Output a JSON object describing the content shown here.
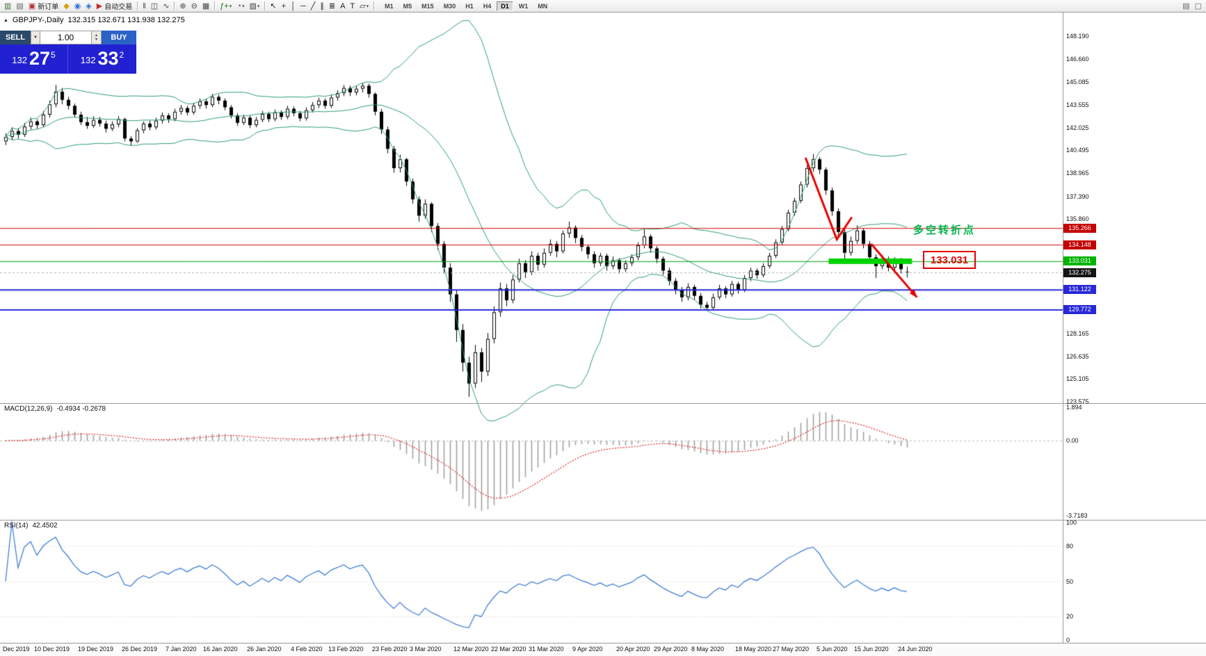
{
  "toolbar": {
    "new_order_label": "新订单",
    "auto_trading_label": "自动交易",
    "timeframes": [
      "M1",
      "M5",
      "M15",
      "M30",
      "H1",
      "H4",
      "D1",
      "W1",
      "MN"
    ],
    "active_timeframe": "D1",
    "items": [
      {
        "n": "charts-grid-icon",
        "g": "▥",
        "c": "#3c6e3c"
      },
      {
        "n": "chart-window-icon",
        "g": "▤",
        "c": "#666666"
      },
      {
        "n": "new-order-button",
        "g": "▣",
        "c": "#b03030",
        "label": "新订单"
      },
      {
        "n": "symbols-icon",
        "g": "◆",
        "c": "#d8a010"
      },
      {
        "n": "market-watch-icon",
        "g": "◉",
        "c": "#2b6fd4"
      },
      {
        "n": "navigator-icon",
        "g": "◈",
        "c": "#2b6fd4"
      },
      {
        "n": "auto-trading-button",
        "g": "▶",
        "c": "#c03030",
        "label": "自动交易"
      },
      {
        "t": "sep"
      },
      {
        "n": "bar-chart-type-icon",
        "g": "‖",
        "c": "#444444"
      },
      {
        "n": "candlestick-chart-type-icon",
        "g": "◫",
        "c": "#444444"
      },
      {
        "n": "line-chart-type-icon",
        "g": "∿",
        "c": "#444444"
      },
      {
        "t": "sep"
      },
      {
        "n": "zoom-in-icon",
        "g": "⊕",
        "c": "#444444"
      },
      {
        "n": "zoom-out-icon",
        "g": "⊖",
        "c": "#444444"
      },
      {
        "n": "tile-windows-icon",
        "g": "▦",
        "c": "#444444"
      },
      {
        "t": "sep"
      },
      {
        "n": "indicators-icon",
        "g": "ƒ+",
        "c": "#0a7a0a",
        "caret": true
      },
      {
        "n": "periods-icon",
        "g": "◔",
        "c": "#444444",
        "caret": true
      },
      {
        "n": "templates-icon",
        "g": "▧",
        "c": "#444444",
        "caret": true
      },
      {
        "t": "sep"
      },
      {
        "n": "cursor-icon",
        "g": "↖",
        "c": "#222222"
      },
      {
        "n": "crosshair-icon",
        "g": "+",
        "c": "#222222"
      },
      {
        "n": "vertical-line-icon",
        "g": "│",
        "c": "#222222"
      },
      {
        "n": "horizontal-line-icon",
        "g": "─",
        "c": "#222222"
      },
      {
        "n": "trendline-icon",
        "g": "╱",
        "c": "#222222"
      },
      {
        "n": "equidistant-channel-icon",
        "g": "∥",
        "c": "#222222"
      },
      {
        "n": "fibonacci-icon",
        "g": "≣",
        "c": "#222222"
      },
      {
        "n": "text-icon",
        "g": "A",
        "c": "#222222"
      },
      {
        "n": "label-icon",
        "g": "T",
        "c": "#222222"
      },
      {
        "n": "shapes-icon",
        "g": "▱",
        "c": "#222222",
        "caret": true
      },
      {
        "t": "sep"
      },
      {
        "t": "tf"
      },
      {
        "t": "spacer"
      },
      {
        "n": "print-icon",
        "g": "▤",
        "c": "#666666"
      },
      {
        "n": "chart-properties-icon",
        "g": "▢",
        "c": "#666666"
      }
    ]
  },
  "chart": {
    "symbol": "GBPJPY-,Daily",
    "ohlc": "132.315 132.671 131.938 132.275",
    "macd_title": "MACD(12,26,9)",
    "macd_values": "-0.4934 -0.2678",
    "rsi_title": "RSI(14)",
    "rsi_value": "42.4502"
  },
  "trade_panel": {
    "sell_label": "SELL",
    "buy_label": "BUY",
    "volume": "1.00",
    "sell_price_int": "132",
    "sell_price_pips": "27",
    "sell_price_frac": "5",
    "buy_price_int": "132",
    "buy_price_pips": "33",
    "buy_price_frac": "2"
  },
  "annotations": {
    "turning_point": "多空转折点",
    "level_box": "133.031"
  },
  "chart_data": {
    "type": "candlestick",
    "symbol": "GBPJPY",
    "timeframe": "Daily",
    "price_axis": {
      "labels": [
        "148.190",
        "146.660",
        "145.085",
        "143.555",
        "142.025",
        "140.495",
        "138.965",
        "137.390",
        "135.860",
        "128.165",
        "126.635",
        "125.105",
        "123.575"
      ]
    },
    "date_axis": [
      {
        "label": "Dec 2019",
        "i": 0
      },
      {
        "label": "10 Dec 2019",
        "i": 5
      },
      {
        "label": "19 Dec 2019",
        "i": 12
      },
      {
        "label": "26 Dec 2019",
        "i": 19
      },
      {
        "label": "7 Jan 2020",
        "i": 26
      },
      {
        "label": "16 Jan 2020",
        "i": 32
      },
      {
        "label": "26 Jan 2020",
        "i": 39
      },
      {
        "label": "4 Feb 2020",
        "i": 46
      },
      {
        "label": "13 Feb 2020",
        "i": 52
      },
      {
        "label": "23 Feb 2020",
        "i": 59
      },
      {
        "label": "3 Mar 2020",
        "i": 65
      },
      {
        "label": "12 Mar 2020",
        "i": 72
      },
      {
        "label": "22 Mar 2020",
        "i": 78
      },
      {
        "label": "31 Mar 2020",
        "i": 84
      },
      {
        "label": "9 Apr 2020",
        "i": 91
      },
      {
        "label": "20 Apr 2020",
        "i": 98
      },
      {
        "label": "29 Apr 2020",
        "i": 104
      },
      {
        "label": "8 May 2020",
        "i": 110
      },
      {
        "label": "18 May 2020",
        "i": 117
      },
      {
        "label": "27 May 2020",
        "i": 123
      },
      {
        "label": "5 Jun 2020",
        "i": 130
      },
      {
        "label": "15 Jun 2020",
        "i": 136
      },
      {
        "label": "24 Jun 2020",
        "i": 143
      }
    ],
    "indicators": {
      "bollinger": {
        "period": 20,
        "deviation": 2,
        "color": "#2e9e6e"
      },
      "macd": {
        "fast": 12,
        "slow": 26,
        "signal": 9,
        "histogram_color": "#a0a0a0",
        "signal_color": "#dd2222"
      },
      "rsi": {
        "period": 14,
        "color": "#3f7fd6",
        "levels": [
          80,
          50,
          20
        ]
      }
    },
    "macd_axis_labels": [
      "1.894",
      "0.00",
      "-3.7183"
    ],
    "rsi_axis_labels": [
      "100",
      "80",
      "50",
      "20",
      "0"
    ],
    "levels": [
      {
        "price": 135.266,
        "text": "135.266",
        "color": "#d40000",
        "width": 1,
        "tag_bg": "#c40000",
        "tag_fg": "#ffffff"
      },
      {
        "price": 134.148,
        "text": "134.148",
        "color": "#d40000",
        "width": 1,
        "tag_bg": "#c40000",
        "tag_fg": "#ffffff"
      },
      {
        "price": 133.031,
        "text": "133.031",
        "color": "#00a000",
        "width": 1,
        "tag_bg": "#00b400",
        "tag_fg": "#ffffff"
      },
      {
        "price": 131.122,
        "text": "131.122",
        "color": "#2828d8",
        "width": 2,
        "tag_bg": "#2828d8",
        "tag_fg": "#ffffff"
      },
      {
        "price": 129.772,
        "text": "129.772",
        "color": "#2828d8",
        "width": 2,
        "tag_bg": "#2828d8",
        "tag_fg": "#ffffff"
      }
    ],
    "current_price": {
      "value": 132.275,
      "text": "132.275",
      "tag_bg": "#141414",
      "tag_fg": "#ffffff"
    },
    "support_bar": {
      "price": 133.031,
      "from_i": 131.5,
      "to_i": 144.8,
      "color": "#00d200"
    },
    "arrows": [
      {
        "color": "#e60000",
        "head": false,
        "pts": [
          [
            127.8,
            140.0
          ],
          [
            132.8,
            134.5
          ],
          [
            135.2,
            136.0
          ]
        ]
      },
      {
        "color": "#e60000",
        "head": true,
        "pts": [
          [
            138.3,
            134.2
          ],
          [
            145.6,
            130.6
          ]
        ]
      }
    ],
    "candles": [
      [
        141.1,
        141.65,
        140.85,
        141.4
      ],
      [
        141.4,
        142.05,
        141.2,
        141.8
      ],
      [
        141.8,
        142.0,
        141.3,
        141.55
      ],
      [
        141.55,
        142.35,
        141.4,
        142.1
      ],
      [
        142.1,
        142.7,
        141.9,
        142.45
      ],
      [
        142.45,
        142.6,
        141.95,
        142.2
      ],
      [
        142.2,
        143.15,
        142.05,
        142.9
      ],
      [
        142.9,
        143.85,
        142.7,
        143.6
      ],
      [
        143.6,
        144.9,
        143.4,
        144.45
      ],
      [
        144.45,
        144.7,
        143.6,
        143.9
      ],
      [
        143.9,
        144.1,
        143.25,
        143.5
      ],
      [
        143.5,
        143.65,
        142.7,
        142.9
      ],
      [
        142.9,
        143.1,
        142.2,
        142.4
      ],
      [
        142.4,
        142.75,
        141.95,
        142.15
      ],
      [
        142.15,
        142.8,
        142.0,
        142.55
      ],
      [
        142.55,
        142.75,
        142.1,
        142.3
      ],
      [
        142.3,
        142.5,
        141.7,
        141.95
      ],
      [
        141.95,
        142.45,
        141.8,
        142.25
      ],
      [
        142.25,
        142.8,
        142.05,
        142.6
      ],
      [
        142.6,
        142.7,
        141.1,
        141.3
      ],
      [
        141.3,
        141.45,
        140.8,
        141.1
      ],
      [
        141.1,
        142.0,
        141.0,
        141.85
      ],
      [
        141.85,
        142.45,
        141.65,
        142.3
      ],
      [
        142.3,
        142.5,
        141.85,
        142.05
      ],
      [
        142.05,
        142.7,
        141.9,
        142.5
      ],
      [
        142.5,
        143.05,
        142.3,
        142.85
      ],
      [
        142.85,
        143.0,
        142.35,
        142.6
      ],
      [
        142.6,
        143.3,
        142.45,
        143.1
      ],
      [
        143.1,
        143.55,
        142.9,
        143.35
      ],
      [
        143.35,
        143.5,
        142.85,
        143.05
      ],
      [
        143.05,
        143.7,
        142.9,
        143.5
      ],
      [
        143.5,
        144.0,
        143.3,
        143.8
      ],
      [
        143.8,
        143.95,
        143.3,
        143.55
      ],
      [
        143.55,
        144.3,
        143.4,
        144.1
      ],
      [
        144.1,
        144.25,
        143.6,
        143.85
      ],
      [
        143.85,
        144.0,
        143.2,
        143.4
      ],
      [
        143.4,
        143.55,
        142.65,
        142.85
      ],
      [
        142.85,
        143.0,
        142.15,
        142.35
      ],
      [
        142.35,
        142.9,
        142.2,
        142.7
      ],
      [
        142.7,
        142.85,
        142.0,
        142.2
      ],
      [
        142.2,
        142.75,
        142.05,
        142.55
      ],
      [
        142.55,
        143.15,
        142.4,
        142.95
      ],
      [
        142.95,
        143.1,
        142.4,
        142.6
      ],
      [
        142.6,
        143.25,
        142.45,
        143.05
      ],
      [
        143.05,
        143.2,
        142.55,
        142.75
      ],
      [
        142.75,
        143.5,
        142.6,
        143.3
      ],
      [
        143.3,
        143.45,
        142.8,
        143.0
      ],
      [
        143.0,
        143.15,
        142.45,
        142.65
      ],
      [
        142.65,
        143.4,
        142.5,
        143.2
      ],
      [
        143.2,
        143.75,
        143.05,
        143.55
      ],
      [
        143.55,
        144.05,
        143.35,
        143.85
      ],
      [
        143.85,
        144.0,
        143.3,
        143.5
      ],
      [
        143.5,
        144.25,
        143.35,
        144.05
      ],
      [
        144.05,
        144.55,
        143.85,
        144.35
      ],
      [
        144.35,
        144.9,
        144.15,
        144.7
      ],
      [
        144.7,
        144.85,
        144.15,
        144.4
      ],
      [
        144.4,
        144.85,
        144.2,
        144.65
      ],
      [
        144.65,
        145.05,
        144.4,
        144.85
      ],
      [
        144.85,
        145.0,
        144.05,
        144.3
      ],
      [
        144.3,
        144.4,
        142.85,
        143.1
      ],
      [
        143.1,
        143.3,
        141.6,
        141.9
      ],
      [
        141.9,
        142.1,
        140.3,
        140.6
      ],
      [
        140.6,
        140.8,
        139.0,
        139.3
      ],
      [
        139.3,
        140.2,
        139.0,
        139.9
      ],
      [
        139.9,
        140.0,
        138.1,
        138.4
      ],
      [
        138.4,
        138.6,
        136.9,
        137.2
      ],
      [
        137.2,
        137.4,
        135.7,
        136.1
      ],
      [
        136.1,
        137.2,
        135.9,
        136.9
      ],
      [
        136.9,
        137.0,
        135.0,
        135.4
      ],
      [
        135.4,
        135.6,
        133.8,
        134.2
      ],
      [
        134.2,
        134.4,
        132.2,
        132.6
      ],
      [
        132.6,
        132.9,
        130.3,
        130.8
      ],
      [
        130.8,
        131.1,
        127.6,
        128.4
      ],
      [
        128.4,
        128.8,
        125.6,
        126.2
      ],
      [
        126.2,
        126.6,
        123.9,
        124.8
      ],
      [
        124.8,
        127.4,
        124.5,
        126.9
      ],
      [
        126.9,
        127.2,
        124.9,
        125.6
      ],
      [
        125.6,
        128.2,
        125.3,
        127.8
      ],
      [
        127.8,
        130.0,
        127.5,
        129.6
      ],
      [
        129.6,
        131.6,
        129.3,
        131.2
      ],
      [
        131.2,
        131.5,
        130.0,
        130.4
      ],
      [
        130.4,
        132.1,
        130.2,
        131.8
      ],
      [
        131.8,
        133.2,
        131.6,
        132.9
      ],
      [
        132.9,
        133.1,
        131.9,
        132.3
      ],
      [
        132.3,
        133.7,
        132.1,
        133.4
      ],
      [
        133.4,
        133.6,
        132.4,
        132.8
      ],
      [
        132.8,
        133.9,
        132.6,
        133.6
      ],
      [
        133.6,
        134.5,
        133.4,
        134.2
      ],
      [
        134.2,
        134.4,
        133.3,
        133.7
      ],
      [
        133.7,
        135.1,
        133.55,
        134.9
      ],
      [
        134.9,
        135.7,
        134.6,
        135.3
      ],
      [
        135.3,
        135.45,
        134.25,
        134.6
      ],
      [
        134.6,
        134.8,
        133.7,
        134.0
      ],
      [
        134.0,
        134.15,
        133.2,
        133.5
      ],
      [
        133.5,
        133.7,
        132.6,
        132.9
      ],
      [
        132.9,
        133.6,
        132.7,
        133.4
      ],
      [
        133.4,
        133.55,
        132.4,
        132.7
      ],
      [
        132.7,
        133.35,
        132.5,
        133.1
      ],
      [
        133.1,
        133.25,
        132.2,
        132.5
      ],
      [
        132.5,
        133.1,
        132.3,
        132.9
      ],
      [
        132.9,
        133.5,
        132.7,
        133.3
      ],
      [
        133.3,
        134.3,
        133.1,
        134.1
      ],
      [
        134.1,
        135.2,
        133.9,
        134.7
      ],
      [
        134.7,
        134.85,
        133.6,
        133.9
      ],
      [
        133.9,
        134.05,
        132.9,
        133.2
      ],
      [
        133.2,
        133.35,
        132.1,
        132.4
      ],
      [
        132.4,
        132.6,
        131.4,
        131.7
      ],
      [
        131.7,
        131.9,
        130.8,
        131.1
      ],
      [
        131.1,
        131.3,
        130.3,
        130.6
      ],
      [
        130.6,
        131.55,
        130.4,
        131.3
      ],
      [
        131.3,
        131.45,
        130.4,
        130.7
      ],
      [
        130.7,
        130.9,
        129.85,
        130.1
      ],
      [
        130.1,
        130.3,
        129.78,
        129.9
      ],
      [
        129.9,
        130.85,
        129.8,
        130.6
      ],
      [
        130.6,
        131.45,
        130.45,
        131.2
      ],
      [
        131.2,
        131.35,
        130.55,
        130.8
      ],
      [
        130.8,
        131.7,
        130.65,
        131.5
      ],
      [
        131.5,
        131.65,
        130.85,
        131.1
      ],
      [
        131.1,
        132.1,
        130.95,
        131.9
      ],
      [
        131.9,
        132.6,
        131.7,
        132.4
      ],
      [
        132.4,
        132.55,
        131.85,
        132.1
      ],
      [
        132.1,
        132.9,
        131.95,
        132.7
      ],
      [
        132.7,
        133.6,
        132.55,
        133.4
      ],
      [
        133.4,
        134.5,
        133.25,
        134.3
      ],
      [
        134.3,
        135.4,
        134.15,
        135.2
      ],
      [
        135.2,
        136.5,
        135.05,
        136.3
      ],
      [
        136.3,
        137.3,
        136.1,
        137.1
      ],
      [
        137.1,
        138.4,
        136.95,
        138.2
      ],
      [
        138.2,
        139.5,
        138.0,
        139.3
      ],
      [
        139.3,
        140.25,
        139.05,
        139.9
      ],
      [
        139.9,
        140.05,
        138.9,
        139.2
      ],
      [
        139.2,
        139.35,
        137.5,
        137.8
      ],
      [
        137.8,
        138.0,
        136.1,
        136.4
      ],
      [
        136.4,
        136.6,
        134.7,
        135.0
      ],
      [
        135.0,
        135.2,
        133.0,
        133.6
      ],
      [
        133.6,
        134.7,
        133.4,
        134.4
      ],
      [
        134.4,
        135.45,
        134.2,
        135.1
      ],
      [
        135.1,
        135.25,
        133.9,
        134.2
      ],
      [
        134.2,
        134.4,
        133.05,
        133.3
      ],
      [
        133.3,
        133.5,
        131.9,
        132.7
      ],
      [
        132.7,
        133.45,
        132.5,
        133.2
      ],
      [
        133.2,
        133.35,
        132.35,
        132.6
      ],
      [
        132.6,
        133.3,
        132.4,
        133.1
      ],
      [
        133.1,
        133.25,
        132.2,
        132.5
      ],
      [
        132.315,
        132.671,
        131.938,
        132.275
      ]
    ]
  }
}
